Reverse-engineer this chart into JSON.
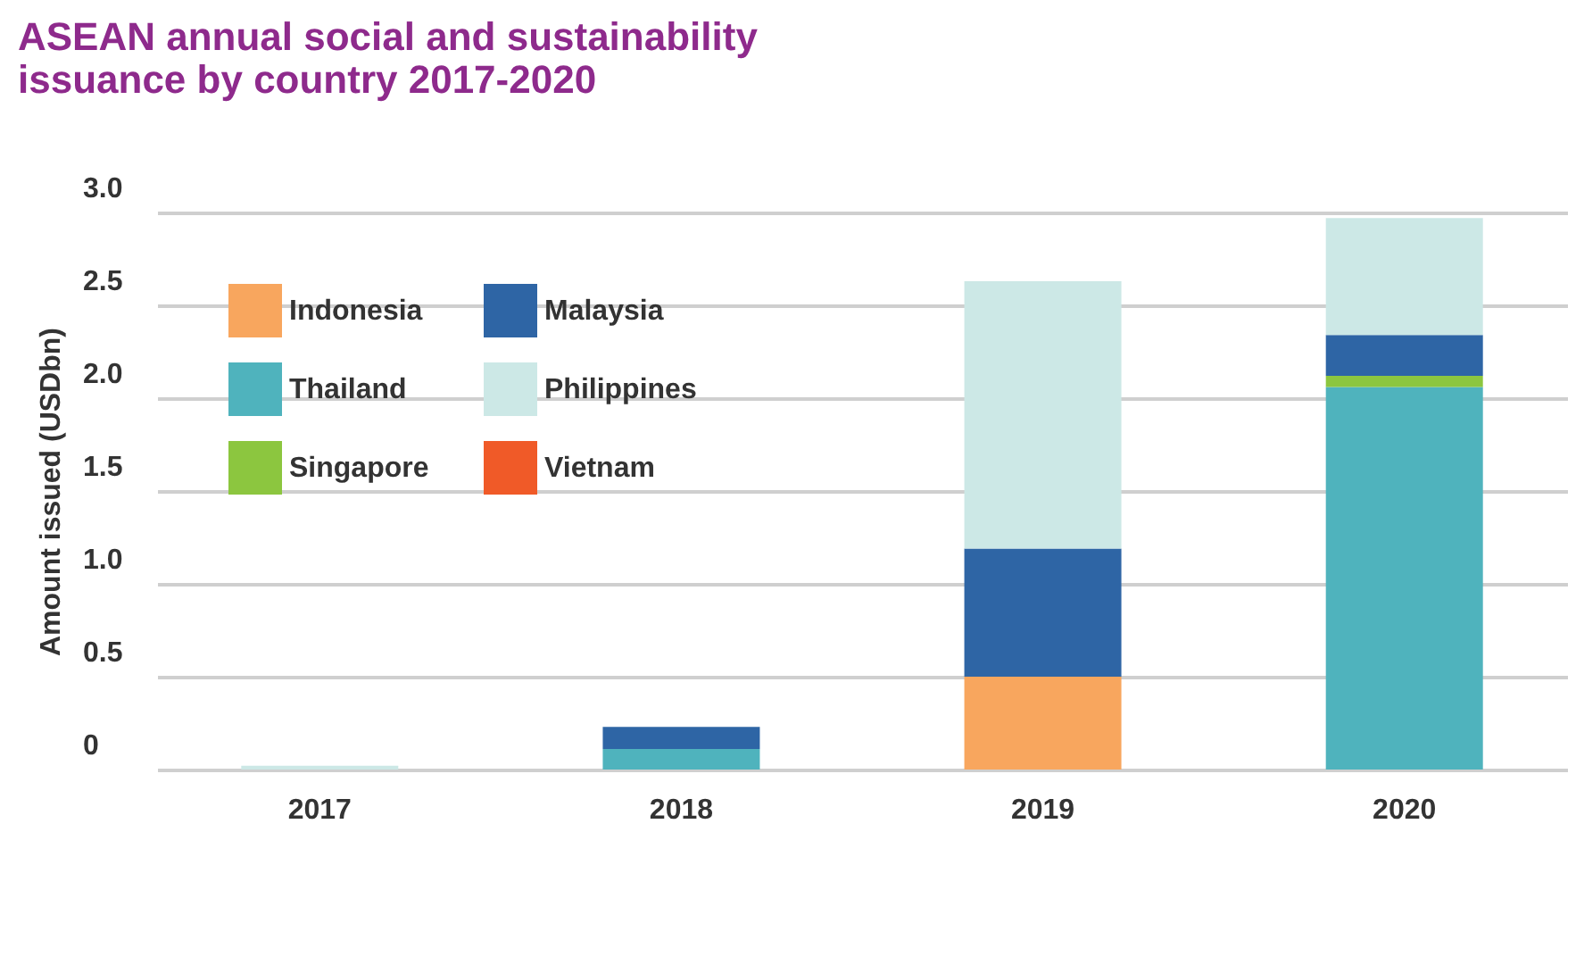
{
  "chart_data": {
    "type": "bar",
    "title": "ASEAN annual social and sustainability issuance by country 2017-2020",
    "ylabel": "Amount issued (USDbn)",
    "categories": [
      "2017",
      "2018",
      "2019",
      "2020"
    ],
    "stacked": true,
    "series": [
      {
        "name": "Indonesia",
        "color": "#f8a65e",
        "values": [
          0,
          0,
          0.5,
          0
        ]
      },
      {
        "name": "Thailand",
        "color": "#4fb3bd",
        "values": [
          0,
          0.11,
          0,
          2.06
        ]
      },
      {
        "name": "Singapore",
        "color": "#8cc63f",
        "values": [
          0,
          0,
          0,
          0.06
        ]
      },
      {
        "name": "Malaysia",
        "color": "#2e65a5",
        "values": [
          0,
          0.12,
          0.69,
          0.22
        ]
      },
      {
        "name": "Philippines",
        "color": "#cce8e6",
        "values": [
          0.02,
          0,
          1.44,
          0.63
        ]
      },
      {
        "name": "Vietnam",
        "color": "#f05a28",
        "values": [
          0,
          0,
          0,
          0
        ]
      }
    ],
    "ylim": [
      0,
      3
    ],
    "yticks": [
      0,
      0.5,
      {
        "value": 1,
        "label": "1.0"
      },
      1.5,
      {
        "value": 2,
        "label": "2.0"
      },
      2.5,
      {
        "value": 3,
        "label": "3.0"
      }
    ],
    "grid": "y",
    "legend": "top left"
  }
}
